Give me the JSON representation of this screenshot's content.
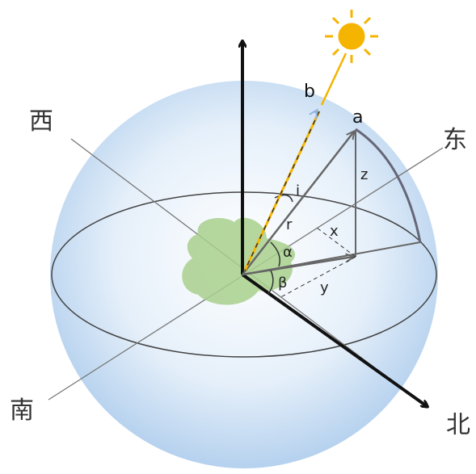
{
  "directions": {
    "west": "西",
    "east": "东",
    "south": "南",
    "north": "北"
  },
  "labels": {
    "a": "a",
    "b": "b",
    "z": "z",
    "i": "i",
    "r": "r",
    "x": "x",
    "alpha": "α",
    "beta": "β",
    "y": "y"
  }
}
